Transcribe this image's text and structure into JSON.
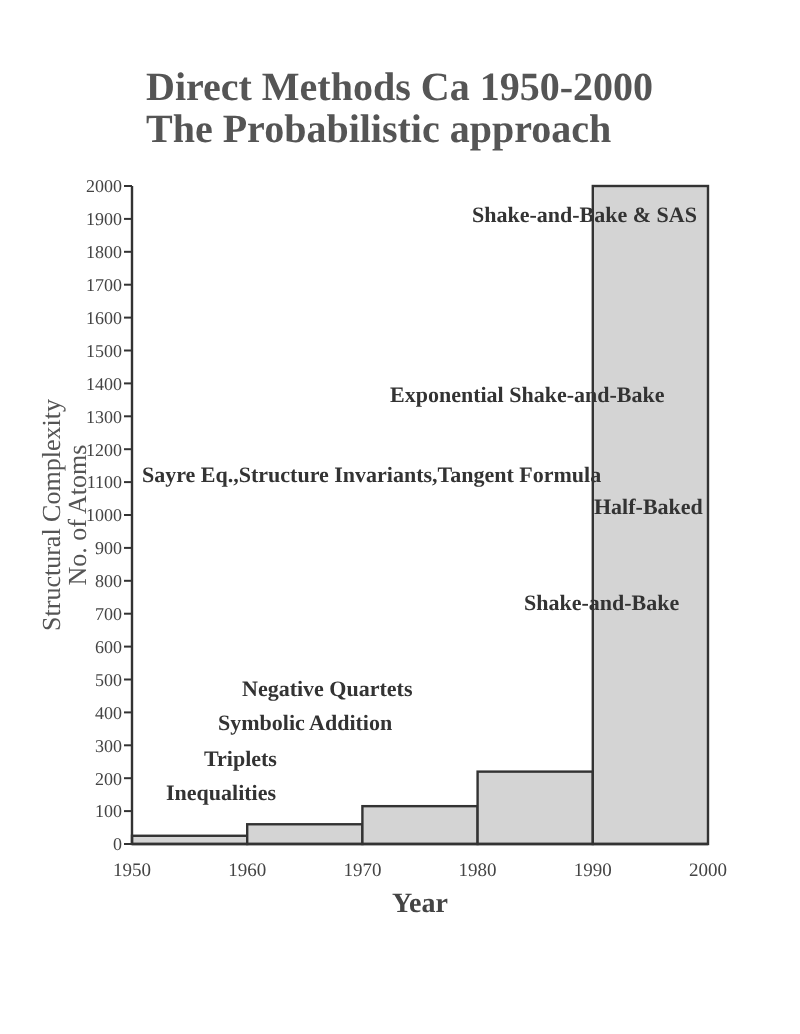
{
  "chart_data": {
    "type": "histogram",
    "title": "Direct Methods Ca 1950-2000\nThe Probabilistic approach",
    "xlabel": "Year",
    "ylabel": "Structural Complexity\nNo. of Atoms",
    "bins": [
      1950,
      1960,
      1970,
      1980,
      1990,
      2000
    ],
    "values": [
      25,
      60,
      115,
      220,
      2000
    ],
    "color": "#d4d4d4",
    "xlim": [
      1950,
      2000
    ],
    "xticks": [
      1950,
      1960,
      1970,
      1980,
      1990,
      2000
    ],
    "ylim": [
      0,
      2000
    ],
    "yticks": [
      0,
      100,
      200,
      300,
      400,
      500,
      600,
      700,
      800,
      900,
      1000,
      1100,
      1200,
      1300,
      1400,
      1500,
      1600,
      1700,
      1800,
      1900,
      2000
    ],
    "annotations": [
      "Inequalities",
      "Triplets",
      "Symbolic Addition",
      "Negative Quartets",
      "Sayre Eq.,Structure Invariants,Tangent Formula",
      "Exponential Shake-and-Bake",
      "Shake-and-Bake & SAS",
      "Half-Baked",
      "Shake-and-Bake"
    ]
  }
}
